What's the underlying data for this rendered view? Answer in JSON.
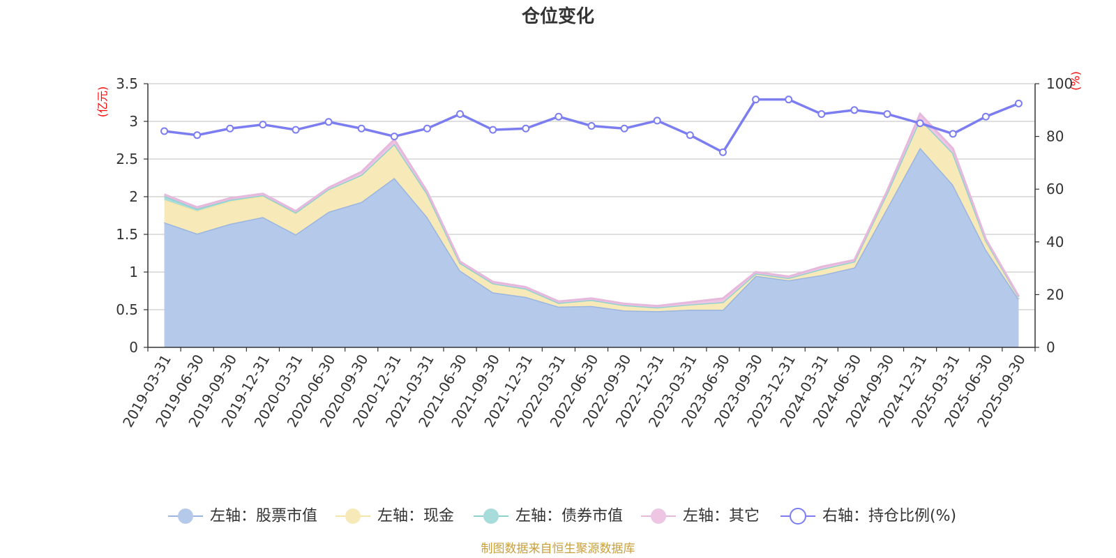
{
  "chart_data": {
    "type": "area",
    "title": "仓位变化",
    "left_axis": {
      "unit": "(亿元)",
      "min": 0,
      "max": 3.5,
      "ticks": [
        "0",
        "0.5",
        "1",
        "1.5",
        "2",
        "2.5",
        "3",
        "3.5"
      ]
    },
    "right_axis": {
      "unit": "(%)",
      "min": 0,
      "max": 100,
      "ticks": [
        "0",
        "20",
        "40",
        "60",
        "80",
        "100"
      ]
    },
    "categories": [
      "2019-03-31",
      "2019-06-30",
      "2019-09-30",
      "2019-12-31",
      "2020-03-31",
      "2020-06-30",
      "2020-09-30",
      "2020-12-31",
      "2021-03-31",
      "2021-06-30",
      "2021-09-30",
      "2021-12-31",
      "2022-03-31",
      "2022-06-30",
      "2022-09-30",
      "2022-12-31",
      "2023-03-31",
      "2023-06-30",
      "2023-09-30",
      "2023-12-31",
      "2024-03-31",
      "2024-06-30",
      "2024-09-30",
      "2024-12-31",
      "2025-03-31",
      "2025-06-30",
      "2025-09-30"
    ],
    "stacked_series": [
      {
        "name": "左轴：股票市值",
        "axis": "left",
        "color": "#9ab5df",
        "fill": "#b5c9ea",
        "values": [
          1.66,
          1.51,
          1.64,
          1.73,
          1.5,
          1.8,
          1.93,
          2.25,
          1.73,
          1.02,
          0.73,
          0.67,
          0.54,
          0.55,
          0.49,
          0.48,
          0.5,
          0.5,
          0.95,
          0.89,
          0.96,
          1.06,
          1.85,
          2.65,
          2.16,
          1.3,
          0.64
        ]
      },
      {
        "name": "左轴：现金",
        "axis": "left",
        "color": "#f6e5a8",
        "fill": "#f8eab8",
        "values": [
          0.3,
          0.3,
          0.3,
          0.28,
          0.28,
          0.3,
          0.36,
          0.45,
          0.31,
          0.1,
          0.12,
          0.11,
          0.05,
          0.08,
          0.07,
          0.05,
          0.07,
          0.1,
          0.03,
          0.03,
          0.08,
          0.08,
          0.2,
          0.38,
          0.42,
          0.12,
          0.03
        ]
      },
      {
        "name": "左轴：债券市值",
        "axis": "left",
        "color": "#8fd1d0",
        "fill": "#a8dcdb",
        "values": [
          0.05,
          0.03,
          0.02,
          0.01,
          0.01,
          0,
          0,
          0,
          0,
          0,
          0,
          0,
          0,
          0,
          0,
          0,
          0,
          0,
          0,
          0,
          0,
          0,
          0,
          0,
          0,
          0,
          0
        ]
      },
      {
        "name": "左轴：其它",
        "axis": "left",
        "color": "#e6b8dc",
        "fill": "#eec6e4",
        "values": [
          0.02,
          0.02,
          0.02,
          0.02,
          0.02,
          0.02,
          0.04,
          0.06,
          0.03,
          0.02,
          0.02,
          0.02,
          0.02,
          0.02,
          0.02,
          0.02,
          0.03,
          0.05,
          0.02,
          0.02,
          0.03,
          0.02,
          0.03,
          0.07,
          0.06,
          0.02,
          0.01
        ]
      }
    ],
    "line_series": {
      "name": "右轴：持仓比例(%)",
      "axis": "right",
      "color": "#7b7df0",
      "values": [
        82,
        80.5,
        83,
        84.5,
        82.5,
        85.5,
        83,
        80,
        83,
        88.5,
        82.5,
        83,
        87.5,
        84,
        83,
        86,
        80.5,
        74,
        94,
        94,
        88.5,
        90,
        88.5,
        85,
        81,
        87.5,
        92.5
      ]
    },
    "legend_position": "bottom",
    "grid": true
  },
  "source_note": "制图数据来自恒生聚源数据库"
}
